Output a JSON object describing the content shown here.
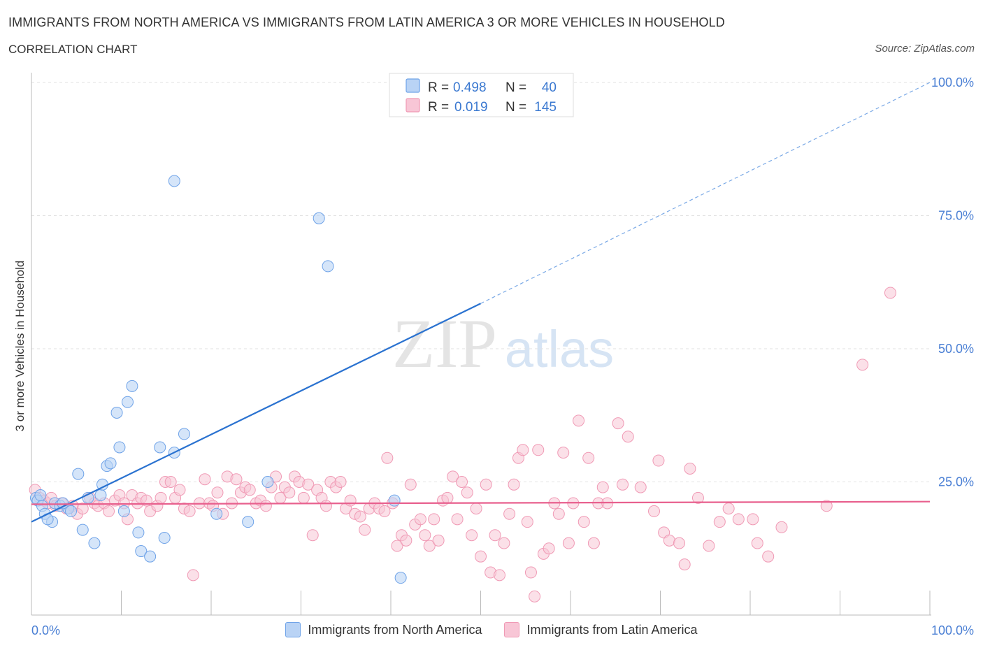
{
  "title": "IMMIGRANTS FROM NORTH AMERICA VS IMMIGRANTS FROM LATIN AMERICA 3 OR MORE VEHICLES IN HOUSEHOLD",
  "subtitle": "CORRELATION CHART",
  "source": "Source: ZipAtlas.com",
  "watermark": {
    "zip": "ZIP",
    "atlas": "atlas"
  },
  "stats_legend": {
    "rows": [
      {
        "r_label": "R = ",
        "r_value": "0.498",
        "n_label": "N = ",
        "n_value": "40",
        "color": "#6fa3e8"
      },
      {
        "r_label": "R = ",
        "r_value": "0.019",
        "n_label": "N = ",
        "n_value": "145",
        "color": "#f09ab5"
      }
    ]
  },
  "bottom_legend": [
    {
      "label": "Immigrants from North America",
      "color": "#6fa3e8"
    },
    {
      "label": "Immigrants from Latin America",
      "color": "#f09ab5"
    }
  ],
  "colors": {
    "blue_line": "#2a72d0",
    "pink_line": "#e8608e",
    "blue_fill": "#b9d3f5",
    "pink_fill": "#f8c6d6",
    "tick_text": "#4a7fd4"
  },
  "chart_data": {
    "type": "scatter",
    "title": "IMMIGRANTS FROM NORTH AMERICA VS IMMIGRANTS FROM LATIN AMERICA 3 OR MORE VEHICLES IN HOUSEHOLD",
    "xlabel": "",
    "ylabel": "3 or more Vehicles in Household",
    "xlim": [
      0,
      100
    ],
    "ylim": [
      0,
      100
    ],
    "x_tick_labels": [
      "0.0%",
      "100.0%"
    ],
    "y_ticks": [
      {
        "value": 25,
        "label": "25.0%"
      },
      {
        "value": 50,
        "label": "50.0%"
      },
      {
        "value": 75,
        "label": "75.0%"
      },
      {
        "value": 100,
        "label": "100.0%"
      }
    ],
    "series": [
      {
        "name": "Immigrants from North America",
        "R": 0.498,
        "N": 40,
        "trend": {
          "x0": 0,
          "y0": 17.5,
          "x1": 50,
          "y1": 58.5,
          "x_dashed_end": 100,
          "y_dashed_end": 100
        },
        "points": [
          [
            0.5,
            22
          ],
          [
            0.7,
            21.5
          ],
          [
            1.2,
            20.5
          ],
          [
            1.5,
            19
          ],
          [
            2.3,
            17.5
          ],
          [
            1.8,
            18
          ],
          [
            2.6,
            21
          ],
          [
            3.2,
            20.5
          ],
          [
            4.1,
            20
          ],
          [
            4.4,
            19.5
          ],
          [
            5.2,
            26.5
          ],
          [
            5.7,
            16
          ],
          [
            6.3,
            22
          ],
          [
            7.0,
            13.5
          ],
          [
            7.7,
            22.5
          ],
          [
            7.9,
            24.5
          ],
          [
            8.4,
            28
          ],
          [
            8.8,
            28.5
          ],
          [
            9.5,
            38
          ],
          [
            9.8,
            31.5
          ],
          [
            10.3,
            19.5
          ],
          [
            10.7,
            40
          ],
          [
            11.2,
            43
          ],
          [
            11.9,
            15.5
          ],
          [
            12.2,
            12
          ],
          [
            13.2,
            11
          ],
          [
            14.3,
            31.5
          ],
          [
            14.8,
            14.5
          ],
          [
            15.9,
            30.5
          ],
          [
            17.0,
            34
          ],
          [
            15.9,
            81.5
          ],
          [
            20.6,
            19
          ],
          [
            24.1,
            17.5
          ],
          [
            26.3,
            25
          ],
          [
            32.0,
            74.5
          ],
          [
            33.0,
            65.5
          ],
          [
            40.4,
            21.5
          ],
          [
            41.1,
            7
          ],
          [
            1.0,
            22.5
          ],
          [
            3.5,
            21
          ]
        ]
      },
      {
        "name": "Immigrants from Latin America",
        "R": 0.019,
        "N": 145,
        "trend": {
          "x0": 0,
          "y0": 20.8,
          "x1": 100,
          "y1": 21.3
        },
        "points": [
          [
            0.4,
            23.5
          ],
          [
            0.9,
            22
          ],
          [
            1.4,
            21.5
          ],
          [
            1.8,
            21
          ],
          [
            2.2,
            22
          ],
          [
            2.7,
            20.5
          ],
          [
            3.4,
            21
          ],
          [
            3.9,
            20
          ],
          [
            4.6,
            20.5
          ],
          [
            5.1,
            19
          ],
          [
            5.7,
            20
          ],
          [
            6.5,
            22
          ],
          [
            7.0,
            21
          ],
          [
            7.4,
            20.5
          ],
          [
            8.1,
            21
          ],
          [
            8.6,
            19.5
          ],
          [
            9.3,
            21.5
          ],
          [
            9.8,
            22.5
          ],
          [
            10.3,
            21
          ],
          [
            10.7,
            18
          ],
          [
            11.2,
            22.5
          ],
          [
            11.8,
            21
          ],
          [
            12.2,
            22
          ],
          [
            12.8,
            21.5
          ],
          [
            13.2,
            19.5
          ],
          [
            14.0,
            20.5
          ],
          [
            14.4,
            22
          ],
          [
            14.9,
            25
          ],
          [
            15.5,
            25
          ],
          [
            16.0,
            22
          ],
          [
            16.5,
            23.5
          ],
          [
            17.0,
            20
          ],
          [
            17.6,
            19.5
          ],
          [
            18.0,
            7.5
          ],
          [
            18.7,
            21
          ],
          [
            19.3,
            25.5
          ],
          [
            19.8,
            21
          ],
          [
            20.2,
            20.5
          ],
          [
            20.7,
            23
          ],
          [
            21.3,
            19
          ],
          [
            21.8,
            26
          ],
          [
            22.3,
            21
          ],
          [
            22.8,
            25.5
          ],
          [
            23.3,
            23
          ],
          [
            23.8,
            24
          ],
          [
            24.3,
            23.5
          ],
          [
            25.0,
            21
          ],
          [
            25.5,
            21.5
          ],
          [
            26.1,
            20.5
          ],
          [
            26.7,
            24
          ],
          [
            27.2,
            26
          ],
          [
            27.7,
            22
          ],
          [
            28.2,
            24
          ],
          [
            28.7,
            23
          ],
          [
            29.3,
            26
          ],
          [
            29.8,
            25
          ],
          [
            30.3,
            22
          ],
          [
            30.8,
            24.5
          ],
          [
            31.3,
            15
          ],
          [
            31.8,
            23.5
          ],
          [
            32.3,
            22
          ],
          [
            32.8,
            20.5
          ],
          [
            33.3,
            25
          ],
          [
            33.9,
            24
          ],
          [
            34.4,
            25
          ],
          [
            35.0,
            20
          ],
          [
            35.5,
            21.5
          ],
          [
            36.0,
            19
          ],
          [
            36.6,
            18.5
          ],
          [
            37.1,
            16
          ],
          [
            37.6,
            20
          ],
          [
            38.2,
            21
          ],
          [
            38.7,
            20
          ],
          [
            39.3,
            19.5
          ],
          [
            39.6,
            29.5
          ],
          [
            40.2,
            21
          ],
          [
            40.7,
            13
          ],
          [
            41.2,
            15
          ],
          [
            41.7,
            14
          ],
          [
            42.2,
            24.5
          ],
          [
            42.7,
            17
          ],
          [
            43.3,
            18
          ],
          [
            43.8,
            15
          ],
          [
            44.3,
            13
          ],
          [
            44.8,
            18
          ],
          [
            45.3,
            14
          ],
          [
            45.8,
            21.5
          ],
          [
            46.3,
            22
          ],
          [
            46.9,
            26
          ],
          [
            47.4,
            18
          ],
          [
            47.9,
            25
          ],
          [
            48.5,
            23
          ],
          [
            49.0,
            15
          ],
          [
            49.5,
            20
          ],
          [
            50.0,
            11
          ],
          [
            50.6,
            24.5
          ],
          [
            51.1,
            8
          ],
          [
            51.6,
            15
          ],
          [
            52.1,
            7.5
          ],
          [
            52.6,
            13.5
          ],
          [
            53.2,
            19
          ],
          [
            53.7,
            24.5
          ],
          [
            54.2,
            29.5
          ],
          [
            54.7,
            31
          ],
          [
            55.2,
            17.5
          ],
          [
            55.6,
            8
          ],
          [
            56.0,
            3.5
          ],
          [
            56.4,
            31
          ],
          [
            57.0,
            11.5
          ],
          [
            57.6,
            12.5
          ],
          [
            58.2,
            21
          ],
          [
            58.7,
            19
          ],
          [
            59.2,
            30.5
          ],
          [
            59.8,
            13.5
          ],
          [
            60.3,
            21
          ],
          [
            60.9,
            36.5
          ],
          [
            61.5,
            17.5
          ],
          [
            62.0,
            29.5
          ],
          [
            62.6,
            13.5
          ],
          [
            63.1,
            21
          ],
          [
            63.6,
            24
          ],
          [
            64.1,
            21
          ],
          [
            65.3,
            36
          ],
          [
            65.8,
            24.5
          ],
          [
            66.4,
            33.5
          ],
          [
            67.8,
            24
          ],
          [
            69.3,
            19.5
          ],
          [
            69.8,
            29
          ],
          [
            70.4,
            15.5
          ],
          [
            71.0,
            14
          ],
          [
            72.1,
            13.5
          ],
          [
            72.7,
            9.5
          ],
          [
            73.3,
            27.5
          ],
          [
            74.2,
            22
          ],
          [
            75.4,
            13
          ],
          [
            76.6,
            17.5
          ],
          [
            77.6,
            20
          ],
          [
            78.7,
            18
          ],
          [
            80.3,
            18
          ],
          [
            80.8,
            13.5
          ],
          [
            82.0,
            11
          ],
          [
            83.5,
            16.5
          ],
          [
            88.5,
            20.5
          ],
          [
            92.5,
            47
          ],
          [
            95.6,
            60.5
          ]
        ]
      }
    ]
  }
}
